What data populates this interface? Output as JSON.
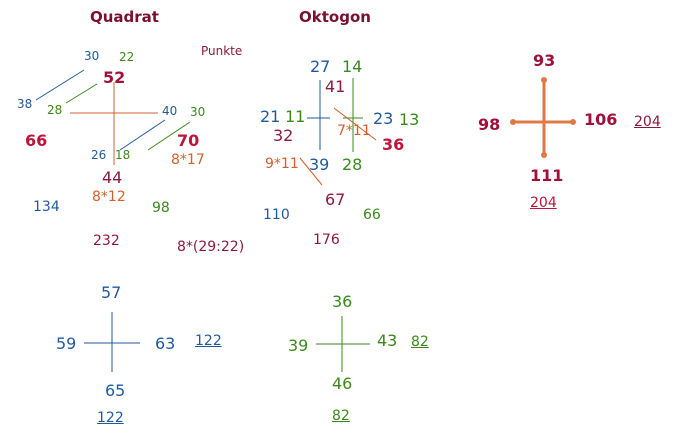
{
  "titles": {
    "quadrat": "Quadrat",
    "oktogon": "Oktogon",
    "punkte": "Punkte"
  },
  "quadrat": {
    "n30": "30",
    "n22": "22",
    "n52": "52",
    "n38": "38",
    "n28": "28",
    "n40": "40",
    "n30b": "30",
    "n66": "66",
    "n70": "70",
    "f8x17": "8*17",
    "n26": "26",
    "n18": "18",
    "n44": "44",
    "f8x12": "8*12",
    "n134": "134",
    "n98": "98",
    "n232": "232",
    "f829": "8*(29:22)"
  },
  "oktogon": {
    "n27": "27",
    "n14": "14",
    "n41": "41",
    "n21": "21",
    "n11": "11",
    "n23": "23",
    "n13": "13",
    "n32": "32",
    "f7x11": "7*11",
    "n36": "36",
    "f9x11": "9*11",
    "n39": "39",
    "n28": "28",
    "n67": "67",
    "n110": "110",
    "n66": "66",
    "n176": "176"
  },
  "cross_orange": {
    "top": "93",
    "left": "98",
    "right": "106",
    "bottom": "111",
    "sum_right": "204",
    "sum_bottom": "204"
  },
  "cross_blue": {
    "top": "57",
    "left": "59",
    "right": "63",
    "bottom": "65",
    "sum_right": "122",
    "sum_bottom": "122"
  },
  "cross_green": {
    "top": "36",
    "left": "39",
    "right": "43",
    "bottom": "46",
    "sum_right": "82",
    "sum_bottom": "82"
  },
  "colors": {
    "blue": "#1f5a9e",
    "green": "#3a8a1c",
    "red": "#c0133a",
    "maroon": "#8c1a3c",
    "orange": "#d2602a"
  }
}
